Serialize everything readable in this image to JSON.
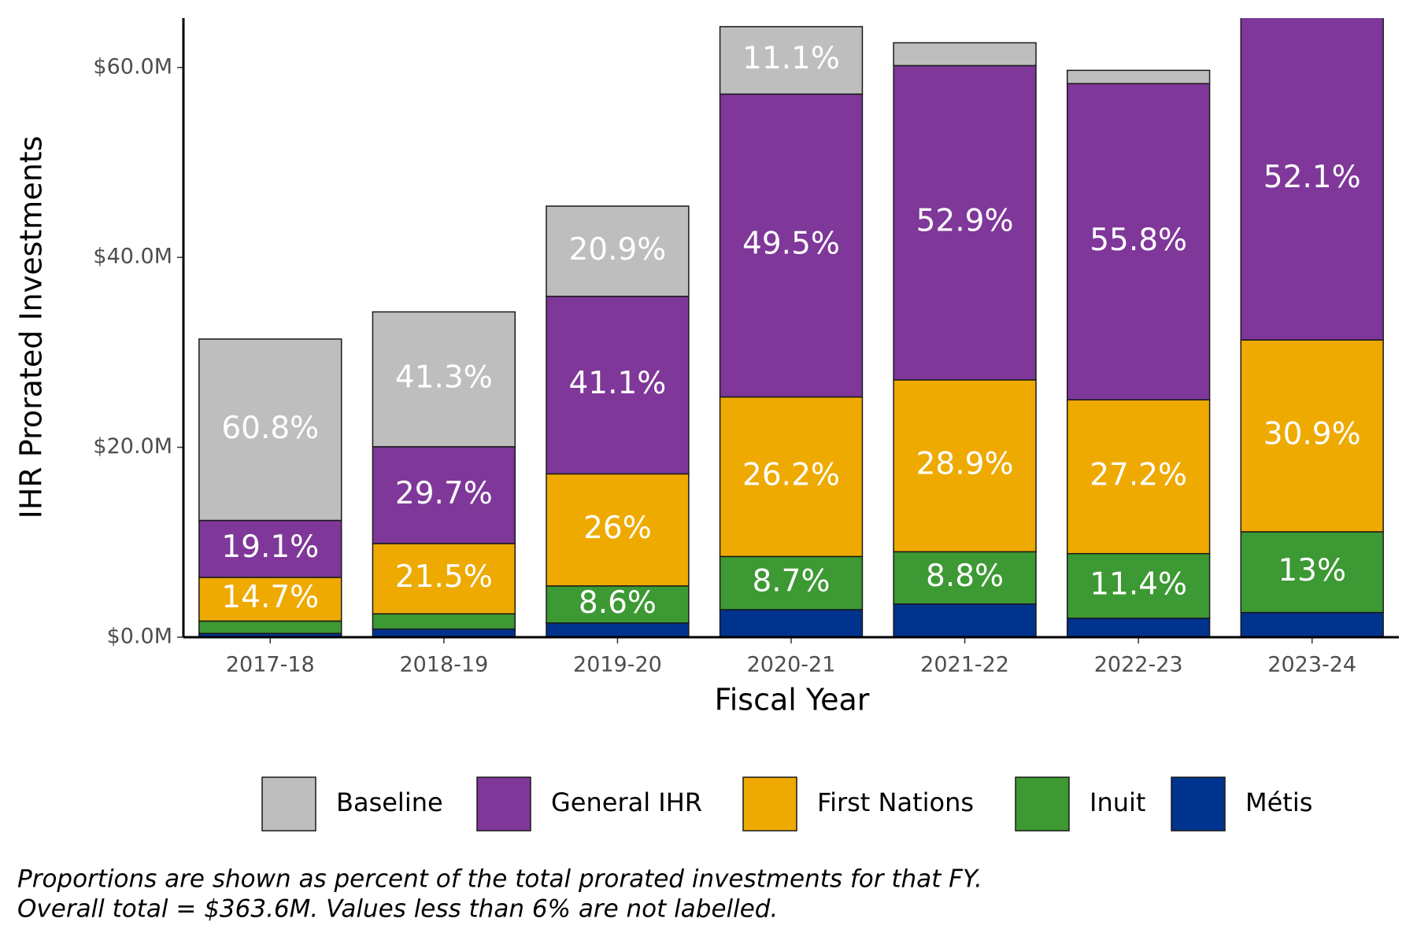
{
  "chart_data": {
    "type": "stacked-bar",
    "x_label": "Fiscal Year",
    "y_label": "IHR Prorated Investments",
    "categories": [
      "2017-18",
      "2018-19",
      "2019-20",
      "2020-21",
      "2021-22",
      "2022-23",
      "2023-24"
    ],
    "ylim": [
      0,
      65.2
    ],
    "yticks": [
      {
        "value": 0,
        "label": "$0.0M"
      },
      {
        "value": 20,
        "label": "$20.0M"
      },
      {
        "value": 40,
        "label": "$40.0M"
      },
      {
        "value": 60,
        "label": "$60.0M"
      }
    ],
    "legend_position": "bottom",
    "series": [
      {
        "name": "Baseline",
        "color": "#bebebe",
        "values": [
          19.1,
          14.2,
          9.5,
          7.1,
          2.4,
          1.4,
          null
        ],
        "labels": [
          "60.8%",
          "41.3%",
          "20.9%",
          "11.1%",
          null,
          null,
          null
        ]
      },
      {
        "name": "General IHR",
        "color": "#7f3799",
        "values": [
          6.0,
          10.2,
          18.7,
          31.9,
          33.1,
          33.3,
          34.1
        ],
        "labels": [
          "19.1%",
          "29.7%",
          "41.1%",
          "49.5%",
          "52.9%",
          "55.8%",
          "52.1%"
        ]
      },
      {
        "name": "First Nations",
        "color": "#eeaa00",
        "values": [
          4.6,
          7.4,
          11.8,
          16.8,
          18.1,
          16.2,
          20.2
        ],
        "labels": [
          "14.7%",
          "21.5%",
          "26%",
          "26.2%",
          "28.9%",
          "27.2%",
          "30.9%"
        ]
      },
      {
        "name": "Inuit",
        "color": "#3d9933",
        "values": [
          1.3,
          1.6,
          3.9,
          5.6,
          5.5,
          6.8,
          8.5
        ],
        "labels": [
          null,
          null,
          "8.6%",
          "8.7%",
          "8.8%",
          "11.4%",
          "13%"
        ]
      },
      {
        "name": "Métis",
        "color": "#00338d",
        "values": [
          0.4,
          0.86,
          1.5,
          2.9,
          3.5,
          2.0,
          2.6
        ],
        "labels": [
          null,
          null,
          null,
          null,
          null,
          null,
          null
        ]
      }
    ],
    "caption": [
      "Proportions are shown as percent of the total prorated investments for that FY.",
      "Overall total = $363.6M. Values less than 6% are not labelled."
    ]
  }
}
